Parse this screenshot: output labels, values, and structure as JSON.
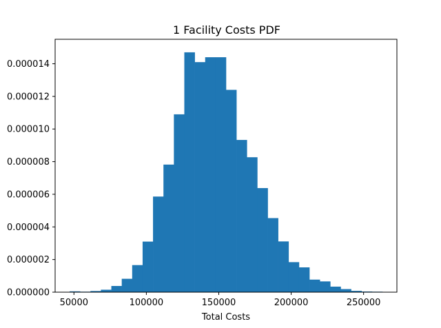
{
  "chart_data": {
    "type": "bar",
    "title": "1 Facility Costs PDF",
    "xlabel": "Total Costs",
    "ylabel": "",
    "bar_color": "#1f77b4",
    "xlim": [
      37000,
      273000
    ],
    "ylim": [
      0,
      1.55e-05
    ],
    "x_ticks": [
      50000,
      100000,
      150000,
      200000,
      250000
    ],
    "x_tick_labels": [
      "50000",
      "100000",
      "150000",
      "200000",
      "250000"
    ],
    "y_ticks": [
      0,
      2e-06,
      4e-06,
      6e-06,
      8e-06,
      1e-05,
      1.2e-05,
      1.4e-05
    ],
    "y_tick_labels": [
      "0.000000",
      "0.000002",
      "0.000004",
      "0.000006",
      "0.000008",
      "0.000010",
      "0.000012",
      "0.000014"
    ],
    "grid": false,
    "bins": [
      {
        "x0": 47000,
        "x1": 54200,
        "value": 5e-08
      },
      {
        "x0": 54200,
        "x1": 61400,
        "value": 3e-08
      },
      {
        "x0": 61400,
        "x1": 68600,
        "value": 7e-08
      },
      {
        "x0": 68600,
        "x1": 75800,
        "value": 1.5e-07
      },
      {
        "x0": 75800,
        "x1": 83000,
        "value": 3.8e-07
      },
      {
        "x0": 83000,
        "x1": 90200,
        "value": 8.2e-07
      },
      {
        "x0": 90200,
        "x1": 97400,
        "value": 1.66e-06
      },
      {
        "x0": 97400,
        "x1": 104600,
        "value": 3.1e-06
      },
      {
        "x0": 104600,
        "x1": 111800,
        "value": 5.86e-06
      },
      {
        "x0": 111800,
        "x1": 119000,
        "value": 7.82e-06
      },
      {
        "x0": 119000,
        "x1": 126200,
        "value": 1.09e-05
      },
      {
        "x0": 126200,
        "x1": 133400,
        "value": 1.47e-05
      },
      {
        "x0": 133400,
        "x1": 140600,
        "value": 1.41e-05
      },
      {
        "x0": 140600,
        "x1": 147800,
        "value": 1.44e-05
      },
      {
        "x0": 147800,
        "x1": 155000,
        "value": 1.44e-05
      },
      {
        "x0": 155000,
        "x1": 162200,
        "value": 1.24e-05
      },
      {
        "x0": 162200,
        "x1": 169400,
        "value": 9.33e-06
      },
      {
        "x0": 169400,
        "x1": 176600,
        "value": 8.27e-06
      },
      {
        "x0": 176600,
        "x1": 183800,
        "value": 6.38e-06
      },
      {
        "x0": 183800,
        "x1": 191000,
        "value": 4.54e-06
      },
      {
        "x0": 191000,
        "x1": 198200,
        "value": 3.11e-06
      },
      {
        "x0": 198200,
        "x1": 205400,
        "value": 1.84e-06
      },
      {
        "x0": 205400,
        "x1": 212600,
        "value": 1.52e-06
      },
      {
        "x0": 212600,
        "x1": 219800,
        "value": 7.7e-07
      },
      {
        "x0": 219800,
        "x1": 227000,
        "value": 6.6e-07
      },
      {
        "x0": 227000,
        "x1": 234200,
        "value": 3.4e-07
      },
      {
        "x0": 234200,
        "x1": 241400,
        "value": 1.9e-07
      },
      {
        "x0": 241400,
        "x1": 248600,
        "value": 8e-08
      },
      {
        "x0": 248600,
        "x1": 255800,
        "value": 4e-08
      },
      {
        "x0": 255800,
        "x1": 263000,
        "value": 3e-08
      }
    ]
  }
}
